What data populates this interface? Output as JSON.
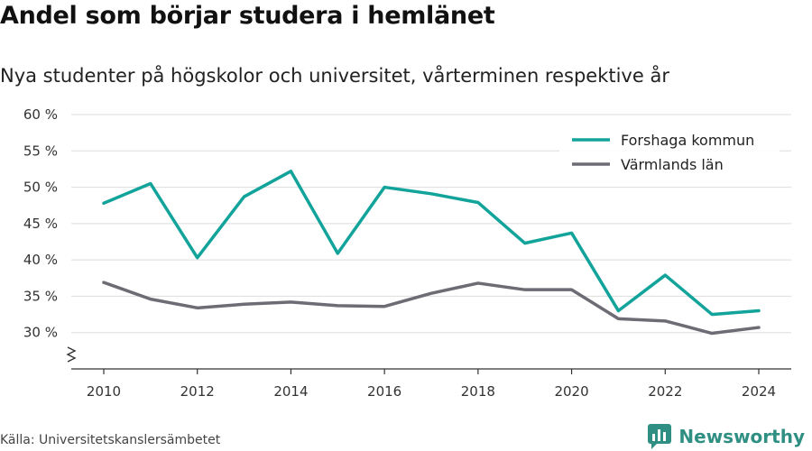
{
  "title": "Andel som börjar studera i hemlänet",
  "subtitle": "Nya studenter på högskolor och universitet, vårterminen respektive år",
  "source": "Källa: Universitetskanslersämbetet",
  "brand": "Newsworthy",
  "colors": {
    "forshaga": "#12a39a",
    "varmland": "#6d6b73",
    "grid": "#dddddd",
    "axis": "#333333",
    "brand": "#2f8f83"
  },
  "chart_data": {
    "type": "line",
    "title": "Andel som börjar studera i hemlänet",
    "subtitle": "Nya studenter på högskolor och universitet, vårterminen respektive år",
    "x": [
      2010,
      2011,
      2012,
      2013,
      2014,
      2015,
      2016,
      2017,
      2018,
      2019,
      2020,
      2021,
      2022,
      2023,
      2024
    ],
    "x_ticks": [
      2010,
      2012,
      2014,
      2016,
      2018,
      2020,
      2022,
      2024
    ],
    "y_ticks": [
      30,
      35,
      40,
      45,
      50,
      55,
      60
    ],
    "y_tick_labels": [
      "30 %",
      "35 %",
      "40 %",
      "45 %",
      "50 %",
      "55 %",
      "60 %"
    ],
    "ylim": [
      25,
      60
    ],
    "y_axis_break": true,
    "grid": true,
    "legend_position": "top-right",
    "series": [
      {
        "name": "Forshaga kommun",
        "color": "#12a39a",
        "values": [
          47.8,
          50.5,
          40.3,
          48.7,
          52.2,
          40.9,
          50.0,
          49.1,
          47.9,
          42.3,
          43.7,
          33.0,
          37.9,
          32.5,
          33.0
        ]
      },
      {
        "name": "Värmlands län",
        "color": "#6d6b73",
        "values": [
          36.9,
          34.6,
          33.4,
          33.9,
          34.2,
          33.7,
          33.6,
          35.4,
          36.8,
          35.9,
          35.9,
          31.9,
          31.6,
          29.9,
          30.7
        ]
      }
    ]
  }
}
